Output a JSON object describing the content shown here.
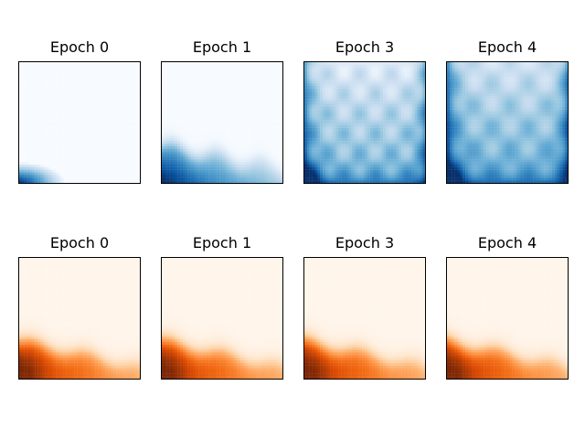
{
  "figure": {
    "background": "#ffffff"
  },
  "chart_data": [
    {
      "type": "heatmap",
      "title": "Epoch 0",
      "colormap": "Blues",
      "row": 0,
      "col": 0,
      "grid": false,
      "axes_ticks": false
    },
    {
      "type": "heatmap",
      "title": "Epoch 1",
      "colormap": "Blues",
      "row": 0,
      "col": 1,
      "grid": false,
      "axes_ticks": false
    },
    {
      "type": "heatmap",
      "title": "Epoch 3",
      "colormap": "Blues",
      "row": 0,
      "col": 2,
      "grid": false,
      "axes_ticks": false
    },
    {
      "type": "heatmap",
      "title": "Epoch 4",
      "colormap": "Blues",
      "row": 0,
      "col": 3,
      "grid": false,
      "axes_ticks": false
    },
    {
      "type": "heatmap",
      "title": "Epoch 0",
      "colormap": "Oranges",
      "row": 1,
      "col": 0,
      "grid": false,
      "axes_ticks": false
    },
    {
      "type": "heatmap",
      "title": "Epoch 1",
      "colormap": "Oranges",
      "row": 1,
      "col": 1,
      "grid": false,
      "axes_ticks": false
    },
    {
      "type": "heatmap",
      "title": "Epoch 3",
      "colormap": "Oranges",
      "row": 1,
      "col": 2,
      "grid": false,
      "axes_ticks": false
    },
    {
      "type": "heatmap",
      "title": "Epoch 4",
      "colormap": "Oranges",
      "row": 1,
      "col": 3,
      "grid": false,
      "axes_ticks": false
    }
  ],
  "colormaps": {
    "Blues": [
      "#f7fbff",
      "#deebf7",
      "#c6dbef",
      "#9ecae1",
      "#6baed6",
      "#4292c6",
      "#2171b5",
      "#08519c",
      "#08306b"
    ],
    "Oranges": [
      "#fff5eb",
      "#fee6ce",
      "#fdd0a2",
      "#fdae6b",
      "#fd8d3c",
      "#f16913",
      "#d94801",
      "#a63603",
      "#7f2704"
    ]
  }
}
